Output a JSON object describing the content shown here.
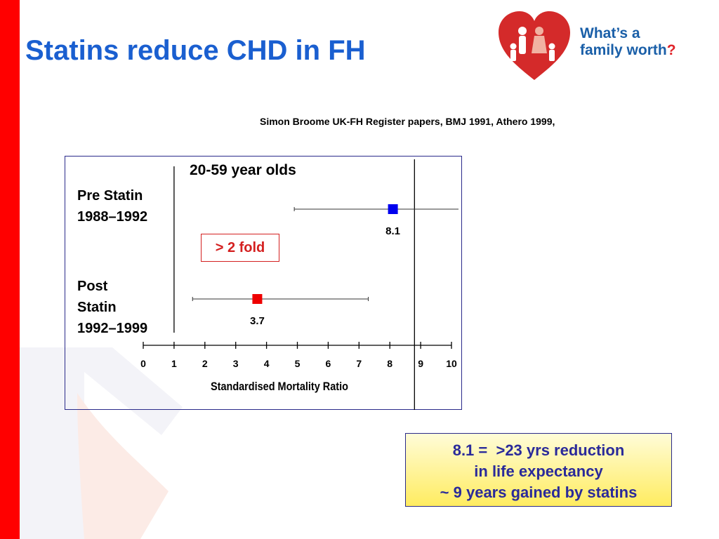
{
  "slide": {
    "title": "Statins reduce CHD in FH",
    "citation": "Simon Broome UK-FH Register papers, BMJ 1991, Athero 1999,",
    "logo": {
      "line1": "What’s a",
      "line2": "family worth",
      "mark": "?"
    },
    "fold_annotation": "> 2 fold",
    "summary": [
      "8.1 =  >23 yrs reduction",
      "in life expectancy",
      "~ 9 years gained by statins"
    ],
    "colors": {
      "title": "#1a5fd0",
      "accent_bar": "#ff0000",
      "pre_marker": "#0000ee",
      "post_marker": "#ee0000"
    }
  },
  "chart_data": {
    "type": "scatter",
    "subtitle": "20-59 year olds",
    "xlabel": "Standardised Mortality Ratio",
    "xlim": [
      0,
      10
    ],
    "x_ticks": [
      "0",
      "1",
      "2",
      "3",
      "4",
      "5",
      "6",
      "7",
      "8",
      "9",
      "10"
    ],
    "reference_lines": [
      1,
      8.8
    ],
    "series": [
      {
        "label_lines": [
          "Pre Statin",
          "1988–1992"
        ],
        "value": 8.1,
        "value_label": "8.1",
        "ci": [
          4.9,
          10.4
        ],
        "color": "#0000ee"
      },
      {
        "label_lines": [
          "Post",
          "Statin",
          "1992–1999"
        ],
        "value": 3.7,
        "value_label": "3.7",
        "ci": [
          1.6,
          7.3
        ],
        "color": "#ee0000"
      }
    ]
  }
}
